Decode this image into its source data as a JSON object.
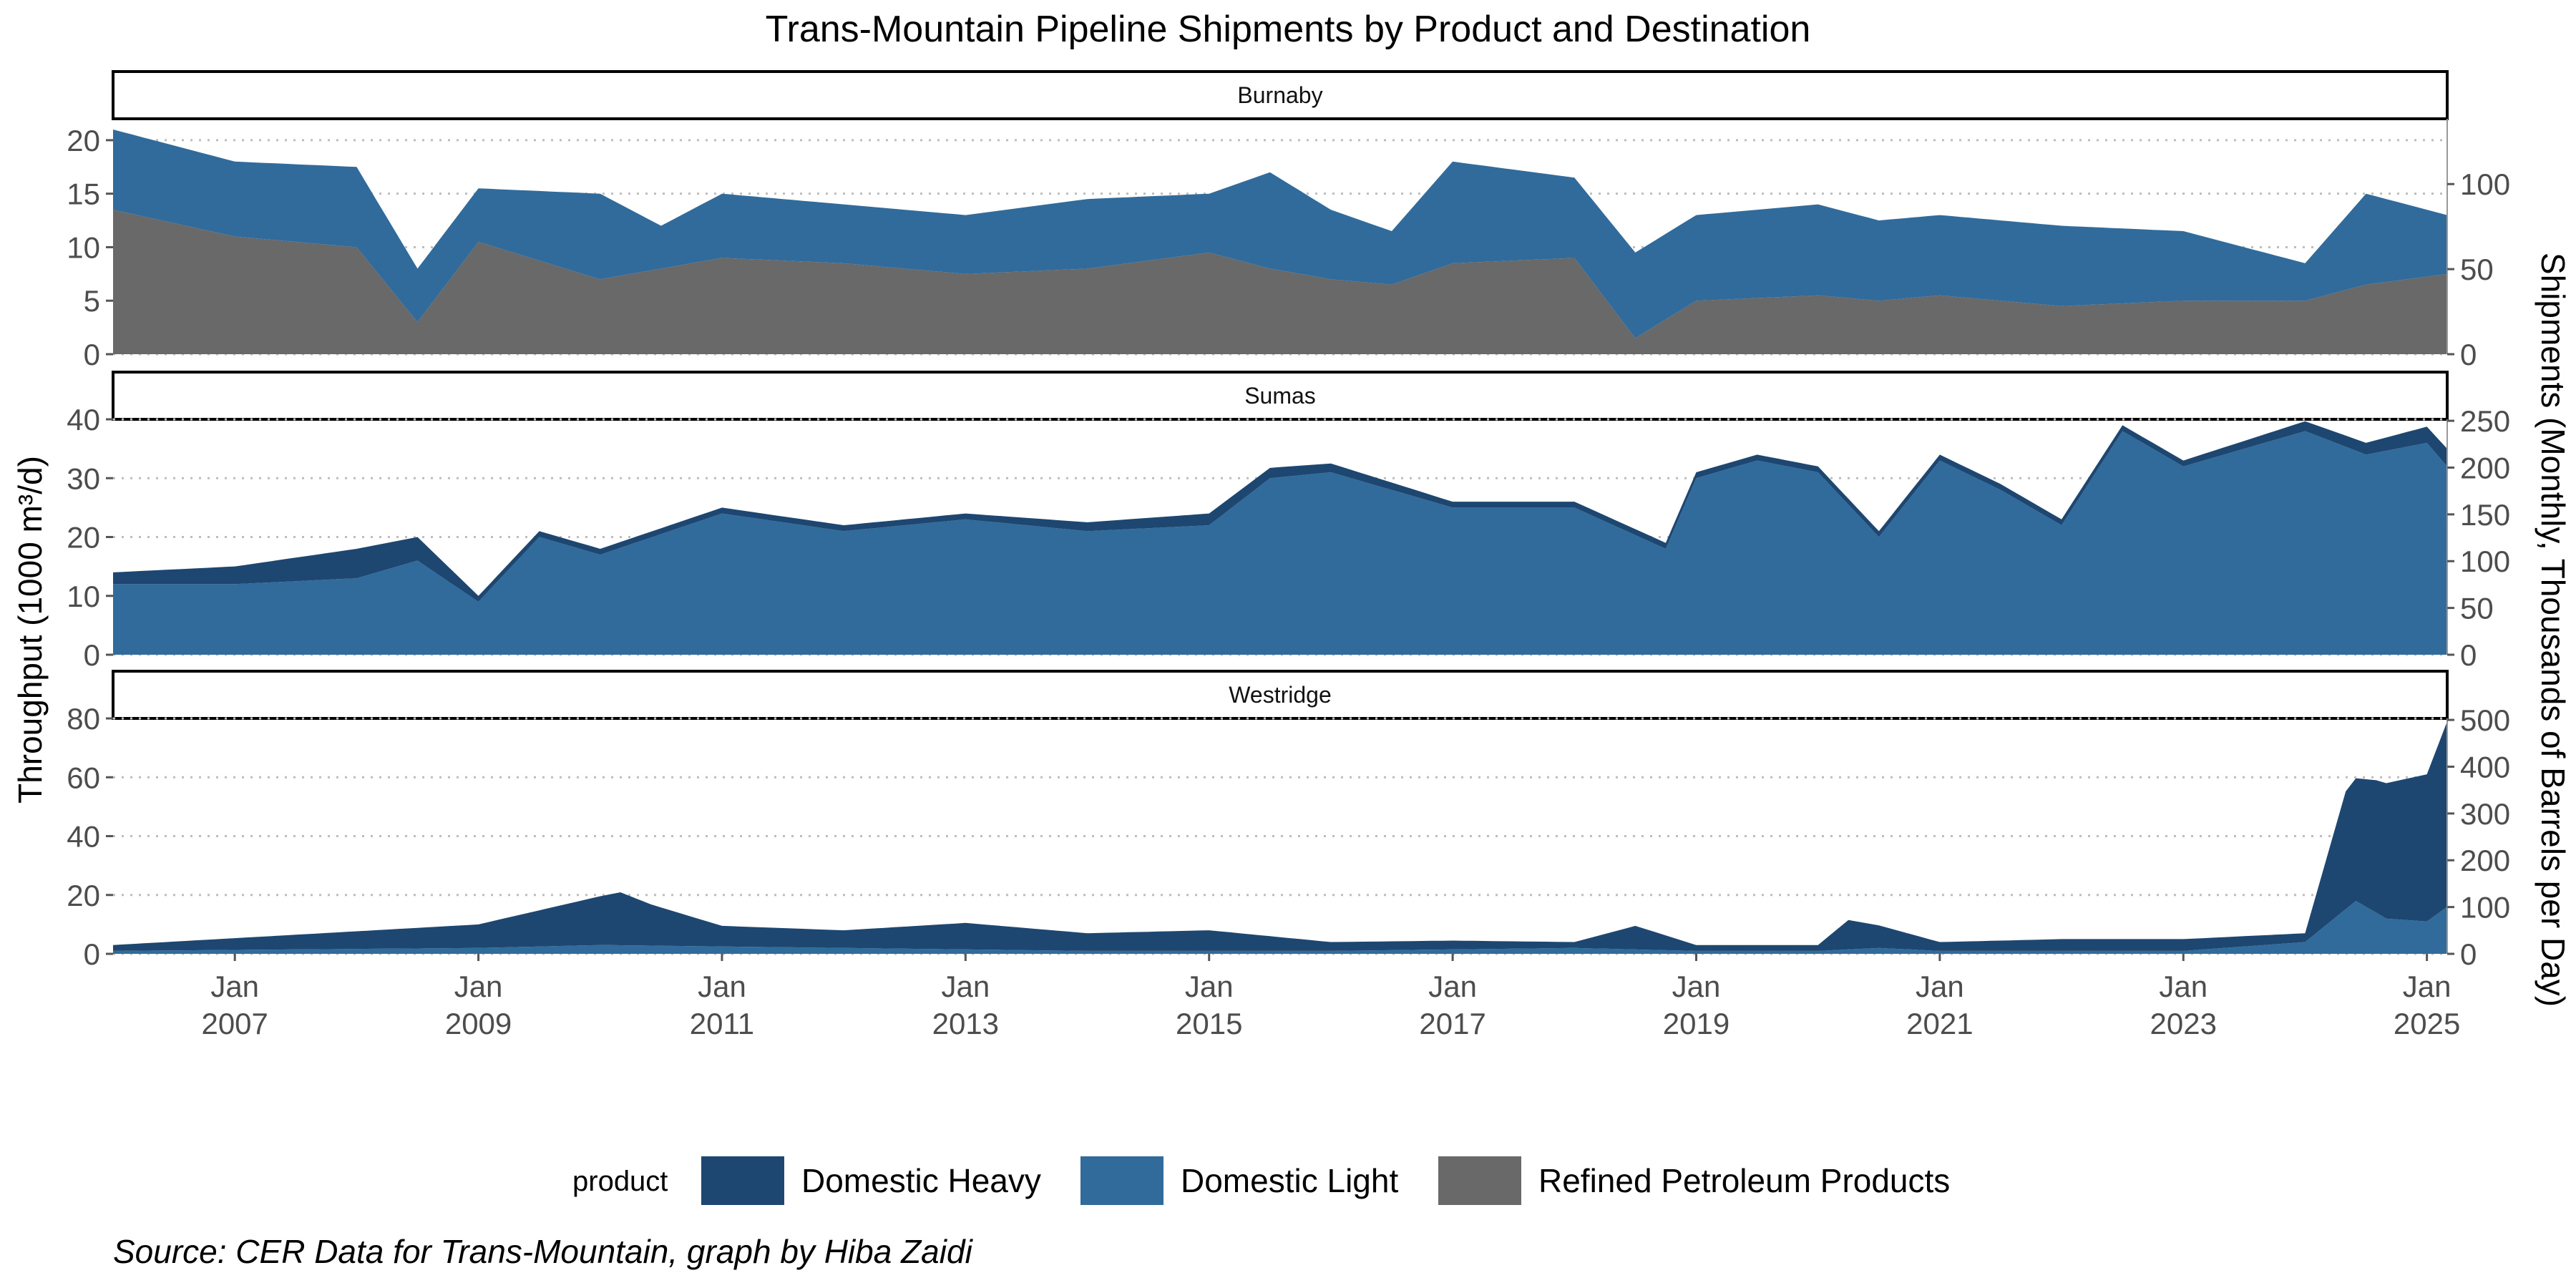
{
  "chart_data": {
    "type": "area",
    "title": "Trans-Mountain Pipeline Shipments by Product and Destination",
    "ylabel": "Throughput (1000 m³/d)",
    "ylabel_right": "Shipments (Monthly, Thousands of Barrels per Day)",
    "caption": "Source: CER Data for Trans-Mountain, graph by Hiba Zaidi",
    "legend": {
      "title": "product",
      "position": "bottom",
      "entries": [
        {
          "name": "Domestic Heavy",
          "color": "#1d4670"
        },
        {
          "name": "Domestic Light",
          "color": "#306b9c"
        },
        {
          "name": "Refined Petroleum Products",
          "color": "#696969"
        }
      ]
    },
    "x_range": [
      "2006-01",
      "2025-03"
    ],
    "x_ticks": [
      {
        "date": "2007-01",
        "month": "Jan",
        "year": "2007"
      },
      {
        "date": "2009-01",
        "month": "Jan",
        "year": "2009"
      },
      {
        "date": "2011-01",
        "month": "Jan",
        "year": "2011"
      },
      {
        "date": "2013-01",
        "month": "Jan",
        "year": "2013"
      },
      {
        "date": "2015-01",
        "month": "Jan",
        "year": "2015"
      },
      {
        "date": "2017-01",
        "month": "Jan",
        "year": "2017"
      },
      {
        "date": "2019-01",
        "month": "Jan",
        "year": "2019"
      },
      {
        "date": "2021-01",
        "month": "Jan",
        "year": "2021"
      },
      {
        "date": "2023-01",
        "month": "Jan",
        "year": "2023"
      },
      {
        "date": "2025-01",
        "month": "Jan",
        "year": "2025"
      }
    ],
    "grid": "horizontal-dotted",
    "panels": [
      {
        "name": "Burnaby",
        "ylim": [
          0,
          22
        ],
        "y_ticks": [
          0,
          5,
          10,
          15,
          20
        ],
        "y2_ticks": [
          0,
          50,
          100
        ],
        "stack_order": [
          "Refined Petroleum Products",
          "Domestic Light",
          "Domestic Heavy"
        ],
        "series": [
          {
            "name": "Refined Petroleum Products",
            "x": [
              "2006-01",
              "2007-01",
              "2008-01",
              "2008-07",
              "2009-01",
              "2010-01",
              "2010-07",
              "2011-01",
              "2012-01",
              "2013-01",
              "2014-01",
              "2015-01",
              "2015-07",
              "2016-01",
              "2016-07",
              "2017-01",
              "2018-01",
              "2018-07",
              "2019-01",
              "2020-01",
              "2020-07",
              "2021-01",
              "2022-01",
              "2023-01",
              "2024-01",
              "2024-07",
              "2025-03"
            ],
            "values": [
              13.5,
              11.0,
              10.0,
              3.0,
              10.5,
              7.0,
              8.0,
              9.0,
              8.5,
              7.5,
              8.0,
              9.5,
              8.0,
              7.0,
              6.5,
              8.5,
              9.0,
              1.5,
              5.0,
              5.5,
              5.0,
              5.5,
              4.5,
              5.0,
              5.0,
              6.5,
              7.5
            ]
          },
          {
            "name": "Domestic Light",
            "x": [
              "2006-01",
              "2007-01",
              "2008-01",
              "2008-07",
              "2009-01",
              "2010-01",
              "2010-07",
              "2011-01",
              "2012-01",
              "2013-01",
              "2014-01",
              "2015-01",
              "2015-07",
              "2016-01",
              "2016-07",
              "2017-01",
              "2018-01",
              "2018-07",
              "2019-01",
              "2020-01",
              "2020-07",
              "2021-01",
              "2022-01",
              "2023-01",
              "2024-01",
              "2024-07",
              "2025-03"
            ],
            "values": [
              7.5,
              7.0,
              7.5,
              5.0,
              5.0,
              8.0,
              4.0,
              6.0,
              5.5,
              5.5,
              6.5,
              5.5,
              9.0,
              6.5,
              5.0,
              9.5,
              7.5,
              8.0,
              8.0,
              8.5,
              7.5,
              7.5,
              7.5,
              6.5,
              3.5,
              8.5,
              5.5
            ]
          },
          {
            "name": "Domestic Heavy",
            "x": [
              "2006-01",
              "2025-03"
            ],
            "values": [
              0,
              0
            ]
          }
        ]
      },
      {
        "name": "Sumas",
        "ylim": [
          0,
          40
        ],
        "y_ticks": [
          0,
          10,
          20,
          30,
          40
        ],
        "y2_ticks": [
          0,
          50,
          100,
          150,
          200,
          250
        ],
        "stack_order": [
          "Refined Petroleum Products",
          "Domestic Light",
          "Domestic Heavy"
        ],
        "series": [
          {
            "name": "Refined Petroleum Products",
            "x": [
              "2006-01",
              "2025-03"
            ],
            "values": [
              0,
              0
            ]
          },
          {
            "name": "Domestic Light",
            "x": [
              "2006-01",
              "2007-01",
              "2008-01",
              "2008-07",
              "2009-01",
              "2009-07",
              "2010-01",
              "2011-01",
              "2012-01",
              "2013-01",
              "2014-01",
              "2015-01",
              "2015-07",
              "2016-01",
              "2017-01",
              "2018-01",
              "2018-10",
              "2019-01",
              "2019-07",
              "2020-01",
              "2020-07",
              "2021-01",
              "2021-07",
              "2022-01",
              "2022-07",
              "2023-01",
              "2023-07",
              "2024-01",
              "2024-07",
              "2025-01",
              "2025-03"
            ],
            "values": [
              12,
              12,
              13,
              16,
              9,
              20,
              17,
              24,
              21,
              23,
              21,
              22,
              30,
              31,
              25,
              25,
              18,
              30,
              33,
              31,
              20,
              33,
              28,
              22,
              38,
              32,
              35,
              38,
              34,
              36,
              32
            ]
          },
          {
            "name": "Domestic Heavy",
            "x": [
              "2006-01",
              "2007-01",
              "2008-01",
              "2008-07",
              "2009-01",
              "2010-01",
              "2011-01",
              "2013-01",
              "2015-01",
              "2017-01",
              "2019-01",
              "2021-01",
              "2023-01",
              "2024-07",
              "2025-03"
            ],
            "values": [
              2,
              3,
              5,
              4,
              1,
              1,
              1,
              1,
              2,
              1,
              1,
              1,
              1,
              2,
              3
            ]
          }
        ]
      },
      {
        "name": "Westridge",
        "ylim": [
          0,
          80
        ],
        "y_ticks": [
          0,
          20,
          40,
          60,
          80
        ],
        "y2_ticks": [
          0,
          100,
          200,
          300,
          400,
          500
        ],
        "stack_order": [
          "Refined Petroleum Products",
          "Domestic Light",
          "Domestic Heavy"
        ],
        "series": [
          {
            "name": "Refined Petroleum Products",
            "x": [
              "2006-01",
              "2025-03"
            ],
            "values": [
              0,
              0
            ]
          },
          {
            "name": "Domestic Light",
            "x": [
              "2006-01",
              "2009-01",
              "2010-01",
              "2012-01",
              "2014-01",
              "2016-01",
              "2018-01",
              "2019-01",
              "2020-01",
              "2020-07",
              "2021-01",
              "2023-01",
              "2024-01",
              "2024-06",
              "2024-09",
              "2025-01",
              "2025-03"
            ],
            "values": [
              1,
              2,
              3,
              2,
              1,
              1,
              2,
              1,
              1,
              2,
              1,
              1,
              4,
              18,
              12,
              11,
              16
            ]
          },
          {
            "name": "Domestic Heavy",
            "x": [
              "2006-01",
              "2009-01",
              "2010-03",
              "2010-06",
              "2011-01",
              "2012-01",
              "2013-01",
              "2014-01",
              "2015-01",
              "2016-01",
              "2017-01",
              "2018-01",
              "2018-07",
              "2019-01",
              "2020-01",
              "2020-04",
              "2021-01",
              "2022-01",
              "2023-01",
              "2024-01",
              "2024-05",
              "2024-08",
              "2025-01",
              "2025-03"
            ],
            "values": [
              2,
              8,
              18,
              14,
              7,
              6,
              9,
              6,
              7,
              3,
              3,
              2,
              8,
              2,
              2,
              10,
              3,
              4,
              4,
              3,
              40,
              45,
              50,
              63
            ]
          }
        ]
      }
    ]
  }
}
